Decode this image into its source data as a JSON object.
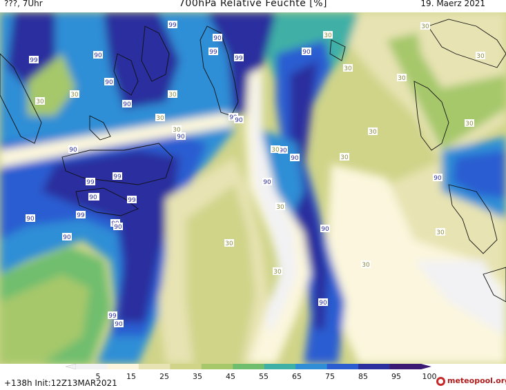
{
  "header": {
    "left": "???, 7Uhr",
    "title": "700hPa Relative Feuchte [%]",
    "date": "19. Maerz 2021"
  },
  "footer": {
    "run": "+138h  Init:12Z13MAR2021",
    "logo": "meteopool.org"
  },
  "colorbar": {
    "ticks": [
      "5",
      "15",
      "25",
      "35",
      "45",
      "55",
      "65",
      "75",
      "85",
      "95",
      "100"
    ],
    "colors": [
      "#f2f2f4",
      "#fbf6dd",
      "#e7e3b2",
      "#cfd489",
      "#a6c86a",
      "#6fbe6e",
      "#3fb0a6",
      "#2f8ed6",
      "#2b5dd1",
      "#2c2f9e",
      "#3a1a72"
    ]
  },
  "map_labels": [
    {
      "text": "99"
    },
    {
      "text": "99"
    },
    {
      "text": "99"
    },
    {
      "text": "99"
    },
    {
      "text": "99"
    },
    {
      "text": "99"
    },
    {
      "text": "99"
    },
    {
      "text": "99"
    },
    {
      "text": "99"
    },
    {
      "text": "99"
    },
    {
      "text": "99"
    },
    {
      "text": "99"
    },
    {
      "text": "90"
    },
    {
      "text": "90"
    },
    {
      "text": "90"
    },
    {
      "text": "90"
    },
    {
      "text": "90"
    },
    {
      "text": "90"
    },
    {
      "text": "90"
    },
    {
      "text": "90"
    },
    {
      "text": "90"
    },
    {
      "text": "90"
    },
    {
      "text": "90"
    },
    {
      "text": "90"
    },
    {
      "text": "90"
    },
    {
      "text": "90"
    },
    {
      "text": "90"
    },
    {
      "text": "90"
    },
    {
      "text": "90"
    },
    {
      "text": "90"
    },
    {
      "text": "90"
    },
    {
      "text": "30"
    },
    {
      "text": "30"
    },
    {
      "text": "30"
    },
    {
      "text": "30"
    },
    {
      "text": "30"
    },
    {
      "text": "30"
    },
    {
      "text": "30"
    },
    {
      "text": "30"
    },
    {
      "text": "30"
    },
    {
      "text": "30"
    },
    {
      "text": "30"
    },
    {
      "text": "30"
    },
    {
      "text": "30"
    },
    {
      "text": "30"
    },
    {
      "text": "30"
    },
    {
      "text": "30"
    },
    {
      "text": "30"
    },
    {
      "text": "30"
    },
    {
      "text": "30"
    }
  ]
}
